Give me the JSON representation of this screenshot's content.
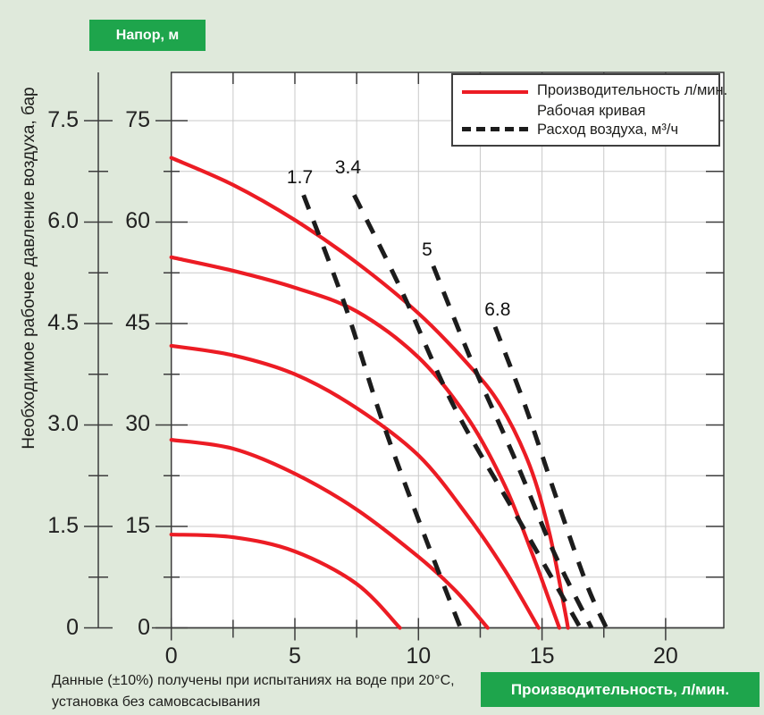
{
  "page": {
    "head_badge": "Напор, м",
    "x_badge": "Производительность, л/мин.",
    "y_axis_title": "Необходимое рабочее давление воздуха, бар",
    "note_line1": "Данные (±10%) получены при испытаниях на воде при 20°C,",
    "note_line2": "установка без самовсасывания"
  },
  "legend": {
    "item1_line1": "Производительность л/мин.",
    "item1_line2": "Рабочая кривая",
    "item2": "Расход воздуха, м³/ч"
  },
  "colors": {
    "background": "#dfe9db",
    "badge_green": "#1ea54c",
    "pump_curve_red": "#ec1c24",
    "air_curve_black": "#1c1c1c",
    "grid": "#c9c9c9",
    "axis": "#3c3c3c",
    "plot_bg": "#ffffff"
  },
  "chart_data": {
    "type": "line",
    "title": "",
    "x_axis": {
      "title": "Производительность, л/мин.",
      "major_ticks": [
        0,
        5,
        10,
        15,
        20
      ],
      "minor_ticks": [
        2.5,
        7.5,
        12.5,
        17.5
      ],
      "range": [
        0,
        22.35
      ],
      "grid_step": 2.5
    },
    "y_axis_pressure_bar": {
      "title": "Необходимое рабочее давление воздуха, бар",
      "tick_labels": [
        "0",
        "1.5",
        "3.0",
        "4.5",
        "6.0",
        "7.5"
      ],
      "range_bar": [
        0,
        8.2
      ]
    },
    "y_axis_head_m": {
      "title": "Напор, м",
      "major_ticks": [
        0,
        15,
        30,
        45,
        60,
        75
      ],
      "range": [
        0,
        82
      ],
      "grid_step": 7.5
    },
    "grid": "on",
    "legend_position": "top-right",
    "pump_curves": [
      {
        "name": "curve-69m",
        "points": [
          [
            0,
            69.5
          ],
          [
            2.5,
            65.5
          ],
          [
            5,
            60.3
          ],
          [
            7.5,
            54
          ],
          [
            10,
            46.5
          ],
          [
            12,
            39
          ],
          [
            13.3,
            33
          ],
          [
            14.5,
            24
          ],
          [
            15.3,
            14
          ],
          [
            15.9,
            3
          ],
          [
            16.05,
            0
          ]
        ]
      },
      {
        "name": "curve-55m",
        "points": [
          [
            0,
            54.8
          ],
          [
            2.5,
            52.8
          ],
          [
            5,
            50.3
          ],
          [
            7.5,
            46.8
          ],
          [
            10,
            40
          ],
          [
            12,
            31
          ],
          [
            13.5,
            21
          ],
          [
            14.6,
            11
          ],
          [
            15.3,
            4
          ],
          [
            15.7,
            0
          ]
        ]
      },
      {
        "name": "curve-42m",
        "points": [
          [
            0,
            41.7
          ],
          [
            2.5,
            40.3
          ],
          [
            5,
            37.5
          ],
          [
            7.5,
            32.5
          ],
          [
            10,
            25.5
          ],
          [
            12,
            16.5
          ],
          [
            13.5,
            8.5
          ],
          [
            14.86,
            0
          ]
        ]
      },
      {
        "name": "curve-28m",
        "points": [
          [
            0,
            27.8
          ],
          [
            2.5,
            26.5
          ],
          [
            5,
            22.8
          ],
          [
            7.5,
            17.5
          ],
          [
            10,
            10.5
          ],
          [
            11.5,
            5.5
          ],
          [
            12.8,
            0
          ]
        ]
      },
      {
        "name": "curve-14m",
        "points": [
          [
            0,
            13.8
          ],
          [
            2.5,
            13.4
          ],
          [
            5,
            11.3
          ],
          [
            7.5,
            6.5
          ],
          [
            9.25,
            0
          ]
        ]
      }
    ],
    "air_curves": [
      {
        "label": "1.7",
        "label_pos": [
          5.2,
          66.5
        ],
        "points": [
          [
            5.35,
            64
          ],
          [
            7,
            48
          ],
          [
            8.5,
            31
          ],
          [
            10,
            16
          ],
          [
            11.7,
            0
          ]
        ]
      },
      {
        "label": "3.4",
        "label_pos": [
          7.15,
          68
        ],
        "points": [
          [
            7.4,
            64
          ],
          [
            9.3,
            50
          ],
          [
            11.4,
            33
          ],
          [
            13.9,
            17
          ],
          [
            16.55,
            0
          ]
        ]
      },
      {
        "label": "5",
        "label_pos": [
          10.35,
          55.8
        ],
        "points": [
          [
            10.6,
            53.5
          ],
          [
            12.2,
            39
          ],
          [
            13.9,
            25
          ],
          [
            15.5,
            11
          ],
          [
            17.0,
            0
          ]
        ]
      },
      {
        "label": "6.8",
        "label_pos": [
          13.2,
          47
        ],
        "points": [
          [
            13.1,
            44.5
          ],
          [
            14.4,
            32
          ],
          [
            15.6,
            19
          ],
          [
            16.8,
            6.5
          ],
          [
            17.6,
            0
          ]
        ]
      }
    ]
  }
}
